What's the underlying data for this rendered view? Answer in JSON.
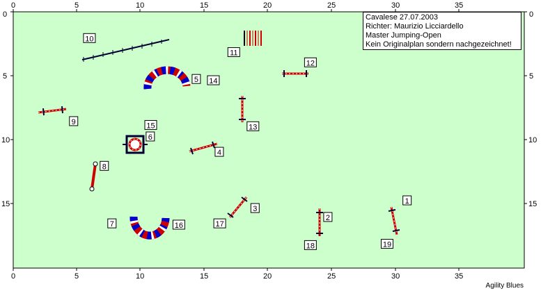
{
  "info": {
    "line1": "Cavalese 27.07.2003",
    "line2": "Richter: Maurizio Licciardello",
    "line3": "Master Jumping-Open",
    "line4": "Kein Originalplan sondern nachgezeichnet!"
  },
  "footer": "Agility Blues",
  "colors": {
    "field": "#ccffcc",
    "red": "#cc0000",
    "blue": "#0000cc",
    "dark": "#000033"
  },
  "axes": {
    "x_ticks": [
      "0",
      "5",
      "10",
      "15",
      "20",
      "25",
      "30",
      "35"
    ],
    "y_ticks": [
      "0",
      "5",
      "10",
      "15"
    ]
  },
  "labels": [
    {
      "text": "1",
      "x": 30.5,
      "y": 15.0
    },
    {
      "text": "2",
      "x": 24.3,
      "y": 16.3
    },
    {
      "text": "3",
      "x": 18.6,
      "y": 15.6
    },
    {
      "text": "4",
      "x": 15.8,
      "y": 11.2
    },
    {
      "text": "5",
      "x": 14.0,
      "y": 5.5
    },
    {
      "text": "6",
      "x": 10.4,
      "y": 10.0
    },
    {
      "text": "7",
      "x": 7.4,
      "y": 16.8
    },
    {
      "text": "8",
      "x": 6.8,
      "y": 12.3
    },
    {
      "text": "9",
      "x": 4.4,
      "y": 8.8
    },
    {
      "text": "10",
      "x": 5.5,
      "y": 2.3
    },
    {
      "text": "11",
      "x": 16.8,
      "y": 3.4
    },
    {
      "text": "12",
      "x": 22.8,
      "y": 4.2
    },
    {
      "text": "13",
      "x": 18.3,
      "y": 9.2
    },
    {
      "text": "14",
      "x": 15.2,
      "y": 5.6
    },
    {
      "text": "15",
      "x": 10.3,
      "y": 9.1
    },
    {
      "text": "16",
      "x": 12.5,
      "y": 16.9
    },
    {
      "text": "17",
      "x": 15.7,
      "y": 16.8
    },
    {
      "text": "18",
      "x": 22.8,
      "y": 18.5
    },
    {
      "text": "19",
      "x": 28.8,
      "y": 18.4
    }
  ]
}
